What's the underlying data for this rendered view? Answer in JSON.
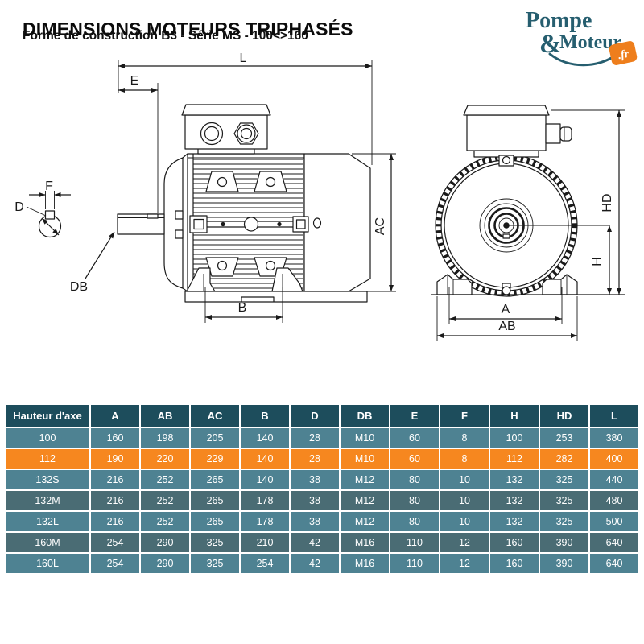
{
  "header": {
    "title": "DIMENSIONS MOTEURS TRIPHASÉS",
    "subtitle": "Forme de construction B3 - Série MS - 100<>160"
  },
  "logo": {
    "word1": "Pompe",
    "amp": "&",
    "word2": "Moteur",
    "badge": ".fr"
  },
  "diagram": {
    "labels": {
      "L": "L",
      "E": "E",
      "F": "F",
      "D": "D",
      "DB": "DB",
      "B": "B",
      "AC": "AC",
      "A": "A",
      "AB": "AB",
      "H": "H",
      "HD": "HD"
    }
  },
  "table": {
    "columns": [
      "Hauteur d'axe",
      "A",
      "AB",
      "AC",
      "B",
      "D",
      "DB",
      "E",
      "F",
      "H",
      "HD",
      "L"
    ],
    "rows": [
      {
        "name": "100",
        "values": [
          "160",
          "198",
          "205",
          "140",
          "28",
          "M10",
          "60",
          "8",
          "100",
          "253",
          "380"
        ],
        "style": "light"
      },
      {
        "name": "112",
        "values": [
          "190",
          "220",
          "229",
          "140",
          "28",
          "M10",
          "60",
          "8",
          "112",
          "282",
          "400"
        ],
        "style": "highlight"
      },
      {
        "name": "132S",
        "values": [
          "216",
          "252",
          "265",
          "140",
          "38",
          "M12",
          "80",
          "10",
          "132",
          "325",
          "440"
        ],
        "style": "light"
      },
      {
        "name": "132M",
        "values": [
          "216",
          "252",
          "265",
          "178",
          "38",
          "M12",
          "80",
          "10",
          "132",
          "325",
          "480"
        ],
        "style": "dark"
      },
      {
        "name": "132L",
        "values": [
          "216",
          "252",
          "265",
          "178",
          "38",
          "M12",
          "80",
          "10",
          "132",
          "325",
          "500"
        ],
        "style": "light"
      },
      {
        "name": "160M",
        "values": [
          "254",
          "290",
          "325",
          "210",
          "42",
          "M16",
          "110",
          "12",
          "160",
          "390",
          "640"
        ],
        "style": "dark"
      },
      {
        "name": "160L",
        "values": [
          "254",
          "290",
          "325",
          "254",
          "42",
          "M16",
          "110",
          "12",
          "160",
          "390",
          "640"
        ],
        "style": "light"
      }
    ]
  },
  "colors": {
    "header_bg": "#1D4D5C",
    "row_light": "#4E8292",
    "row_dark": "#4A6C74",
    "row_highlight": "#F6871F",
    "logo_teal": "#265E6F",
    "logo_orange": "#EE7E1C"
  }
}
